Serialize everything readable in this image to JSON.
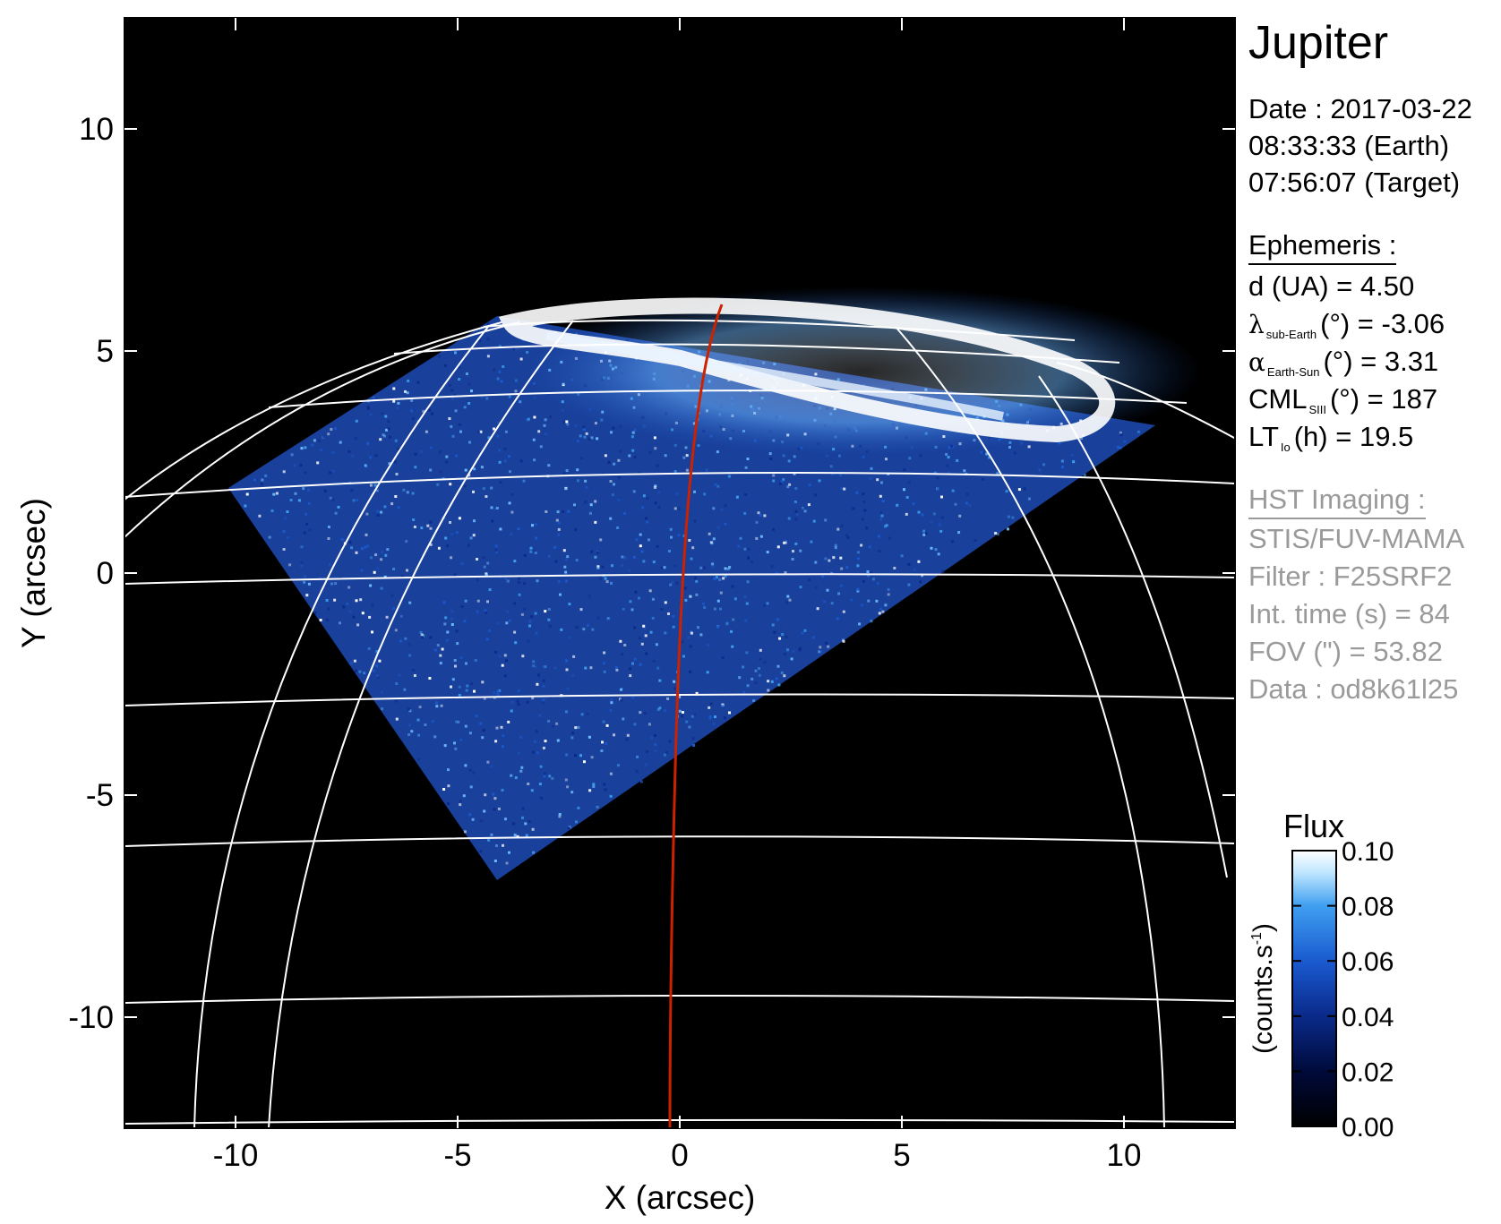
{
  "chart_data": {
    "type": "heatmap",
    "title": "Jupiter",
    "xlabel": "X (arcsec)",
    "ylabel": "Y (arcsec)",
    "xlim": [
      -12.5,
      12.5
    ],
    "ylim": [
      -12.5,
      12.5
    ],
    "xticks": [
      -10,
      -5,
      0,
      5,
      10
    ],
    "yticks": [
      -10,
      -5,
      0,
      5,
      10
    ],
    "colorbar": {
      "title": "Flux",
      "label": "(counts.s",
      "label_exp": "-1",
      "label_close": ")",
      "range": [
        0.0,
        0.1
      ],
      "ticks": [
        "0.00",
        "0.02",
        "0.04",
        "0.06",
        "0.08",
        "0.10"
      ],
      "colormap": [
        "#000000",
        "#000a3a",
        "#0a2a8a",
        "#1a5ad0",
        "#3f9ff0",
        "#bfe6ff",
        "#ffffff"
      ]
    },
    "background_color": "#000000",
    "grid_color": "#ffffff",
    "trace_color": "#cc2200"
  },
  "info": {
    "date_line": "Date : 2017-03-22",
    "earth_time": "08:33:33 (Earth)",
    "target_time": "07:56:07 (Target)",
    "ephemeris_header": "Ephemeris :",
    "d_text": "d (UA)    = 4.50",
    "lat_symbol": "λ",
    "lat_sub": "sub-Earth",
    "lat_rest": "(°) = -3.06",
    "phase_symbol": "α",
    "phase_sub": "Earth-Sun",
    "phase_rest": "(°) = 3.31",
    "cml_main": "CML",
    "cml_sub": "SIII",
    "cml_rest": "(°) = 187",
    "lt_main": "LT",
    "lt_sub": "Io",
    "lt_rest": "(h) = 19.5",
    "hst_header": "HST Imaging :",
    "instrument": "STIS/FUV-MAMA",
    "filter": "Filter : F25SRF2",
    "int_time": "Int. time (s) = 84",
    "fov": "FOV (\") = 53.82",
    "data_id": "Data : od8k61l25"
  }
}
